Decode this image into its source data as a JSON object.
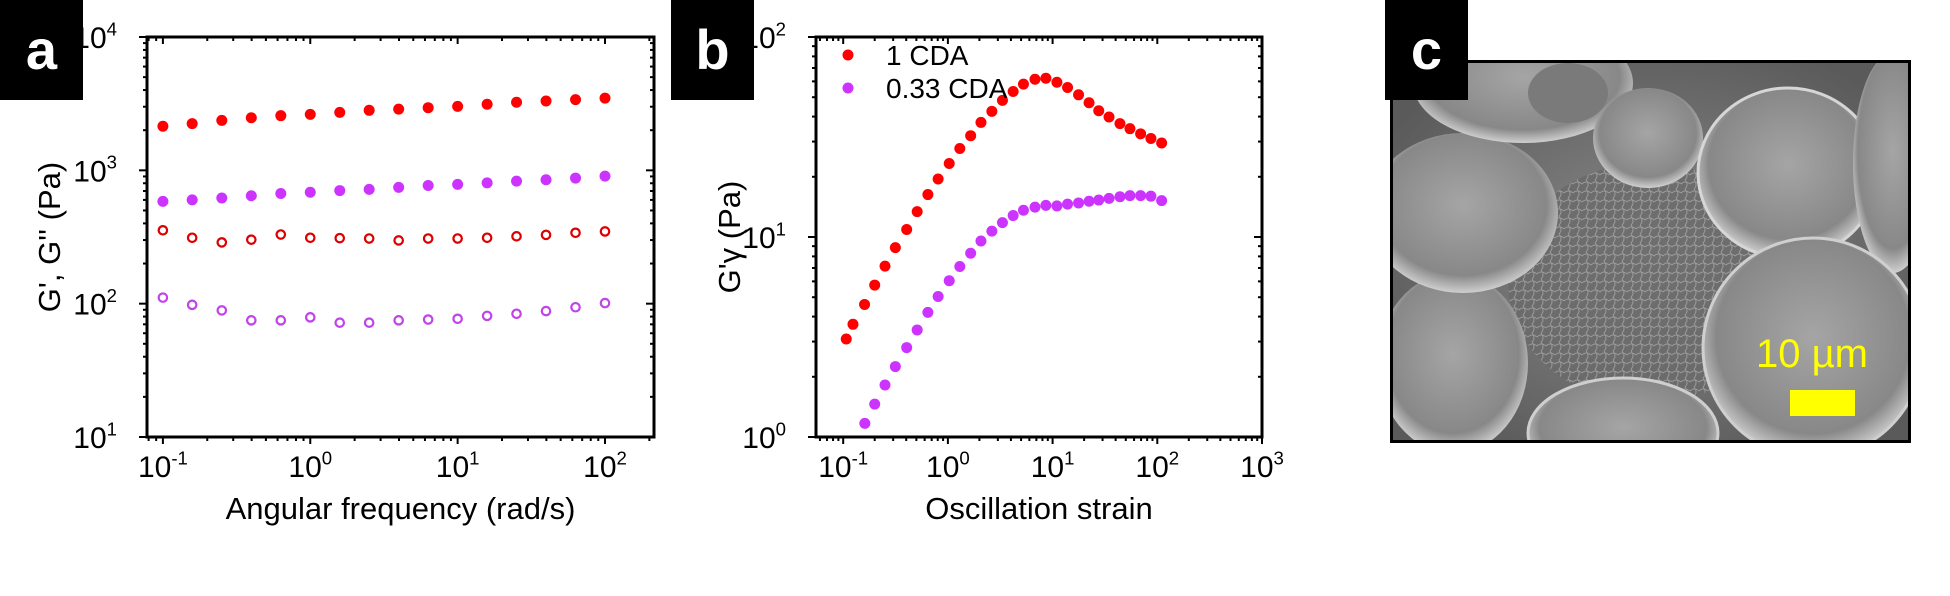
{
  "panels": {
    "a": {
      "label": "a"
    },
    "b": {
      "label": "b"
    },
    "c": {
      "label": "c",
      "scale_bar_text": "10 µm",
      "scale_bar_color": "#ffff00"
    }
  },
  "colors": {
    "red_filled": "#ff0000",
    "red_open": "#dd0000",
    "purple_filled": "#cc33ff",
    "purple_open": "#c044e8"
  },
  "chart_data": [
    {
      "type": "scatter",
      "panel": "a",
      "title": "",
      "xlabel": "Angular frequency (rad/s)",
      "ylabel": "G', G'' (Pa)",
      "xscale": "log",
      "yscale": "log",
      "xlim": [
        0.078,
        215
      ],
      "ylim": [
        10,
        10000
      ],
      "xticks": [
        {
          "v": 0.1,
          "base": "10",
          "exp": "-1"
        },
        {
          "v": 1,
          "base": "10",
          "exp": "0"
        },
        {
          "v": 10,
          "base": "10",
          "exp": "1"
        },
        {
          "v": 100,
          "base": "10",
          "exp": "2"
        }
      ],
      "yticks": [
        {
          "v": 10,
          "base": "10",
          "exp": "1"
        },
        {
          "v": 100,
          "base": "10",
          "exp": "2"
        },
        {
          "v": 1000,
          "base": "10",
          "exp": "3"
        },
        {
          "v": 10000,
          "base": "10",
          "exp": "4"
        }
      ],
      "grid": false,
      "x": [
        0.1,
        0.158,
        0.251,
        0.398,
        0.631,
        1,
        1.585,
        2.51,
        3.98,
        6.31,
        10,
        15.85,
        25.1,
        39.8,
        63.1,
        100
      ],
      "series": [
        {
          "name": "G' (1 CDA)",
          "color": "#ff0000",
          "marker": "filled",
          "values": [
            2140,
            2240,
            2370,
            2480,
            2570,
            2630,
            2720,
            2820,
            2880,
            2950,
            3020,
            3130,
            3240,
            3310,
            3390,
            3480
          ]
        },
        {
          "name": "G' (0.33 CDA)",
          "color": "#cc33ff",
          "marker": "filled",
          "values": [
            585,
            600,
            620,
            645,
            670,
            685,
            705,
            720,
            745,
            770,
            785,
            805,
            830,
            850,
            875,
            905
          ]
        },
        {
          "name": "G'' (1 CDA)",
          "color": "#dd0000",
          "marker": "open",
          "values": [
            355,
            312,
            288,
            302,
            330,
            312,
            310,
            308,
            298,
            308,
            308,
            312,
            320,
            328,
            340,
            348
          ]
        },
        {
          "name": "G'' (0.33 CDA)",
          "color": "#c044e8",
          "marker": "open",
          "values": [
            111,
            98,
            89,
            75,
            75,
            79,
            72,
            72,
            75,
            76,
            77,
            81,
            84,
            88,
            94,
            101
          ]
        }
      ]
    },
    {
      "type": "scatter",
      "panel": "b",
      "title": "",
      "xlabel": "Oscillation strain",
      "ylabel": "G'γ (Pa)",
      "xscale": "log",
      "yscale": "log",
      "xlim": [
        0.055,
        1000
      ],
      "ylim": [
        1,
        100
      ],
      "xticks": [
        {
          "v": 0.1,
          "base": "10",
          "exp": "-1"
        },
        {
          "v": 1,
          "base": "10",
          "exp": "0"
        },
        {
          "v": 10,
          "base": "10",
          "exp": "1"
        },
        {
          "v": 100,
          "base": "10",
          "exp": "2"
        },
        {
          "v": 1000,
          "base": "10",
          "exp": "3"
        }
      ],
      "yticks": [
        {
          "v": 1,
          "base": "10",
          "exp": "0"
        },
        {
          "v": 10,
          "base": "10",
          "exp": "1"
        },
        {
          "v": 100,
          "base": "10",
          "exp": "2"
        }
      ],
      "grid": false,
      "legend": {
        "position": "top-left",
        "entries": [
          "1 CDA",
          "0.33 CDA"
        ]
      },
      "series": [
        {
          "name": "1 CDA",
          "color": "#ff0000",
          "marker": "filled",
          "x": [
            0.107,
            0.124,
            0.16,
            0.2,
            0.251,
            0.315,
            0.404,
            0.509,
            0.644,
            0.807,
            1.03,
            1.3,
            1.65,
            2.07,
            2.63,
            3.32,
            4.2,
            5.27,
            6.79,
            8.63,
            11.0,
            13.9,
            17.7,
            22.3,
            27.6,
            34.6,
            44.0,
            54.8,
            69.3,
            86.9,
            110
          ],
          "values": [
            3.09,
            3.66,
            4.6,
            5.75,
            7.15,
            8.85,
            10.9,
            13.4,
            16.3,
            19.5,
            23.3,
            27.7,
            32.1,
            37.4,
            42.5,
            48.2,
            53.4,
            58.1,
            61.5,
            62.2,
            59.4,
            55.9,
            51.4,
            46.9,
            42.8,
            39.8,
            36.9,
            34.8,
            32.8,
            31.1,
            29.5
          ]
        },
        {
          "name": "0.33 CDA",
          "color": "#cc33ff",
          "marker": "filled",
          "x": [
            0.161,
            0.2,
            0.251,
            0.315,
            0.404,
            0.509,
            0.644,
            0.807,
            1.03,
            1.3,
            1.65,
            2.07,
            2.63,
            3.32,
            4.2,
            5.27,
            6.79,
            8.63,
            11.0,
            13.9,
            17.7,
            22.3,
            27.6,
            34.6,
            44.0,
            54.8,
            69.3,
            86.9,
            110
          ],
          "values": [
            1.17,
            1.46,
            1.82,
            2.25,
            2.8,
            3.43,
            4.2,
            5.04,
            6.04,
            7.12,
            8.29,
            9.55,
            10.7,
            11.8,
            12.8,
            13.6,
            14.1,
            14.4,
            14.3,
            14.6,
            14.8,
            15.1,
            15.3,
            15.6,
            15.9,
            16.1,
            16.1,
            16.0,
            15.2
          ]
        }
      ]
    }
  ]
}
